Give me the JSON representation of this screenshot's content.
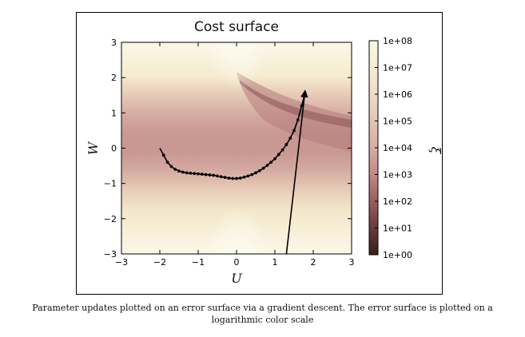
{
  "chart_data": {
    "type": "contour",
    "title": "Cost surface",
    "xlabel": "U",
    "ylabel": "W",
    "xlim": [
      -3,
      3
    ],
    "ylim": [
      -3,
      3
    ],
    "x_ticks": [
      -3,
      -2,
      -1,
      0,
      1,
      2,
      3
    ],
    "y_ticks": [
      -3,
      -2,
      -1,
      0,
      1,
      2,
      3
    ],
    "colorbar": {
      "label": "ξ",
      "scale": "log",
      "range": [
        1,
        100000000
      ],
      "tick_labels": [
        "1e+00",
        "1e+01",
        "1e+02",
        "1e+03",
        "1e+04",
        "1e+05",
        "1e+06",
        "1e+07",
        "1e+08"
      ],
      "colors": [
        "#3a1e1e",
        "#6a3a3a",
        "#9a5e5c",
        "#bf8a86",
        "#d6aca4",
        "#e4c4b6",
        "#efdcc6",
        "#f6ecd3",
        "#fafae4"
      ]
    },
    "gradient_path": {
      "x": [
        1.3,
        1.78,
        1.7,
        1.6,
        1.5,
        1.4,
        1.3,
        1.2,
        1.1,
        1.0,
        0.9,
        0.8,
        0.7,
        0.6,
        0.5,
        0.4,
        0.3,
        0.2,
        0.1,
        0.0,
        -0.1,
        -0.2,
        -0.3,
        -0.4,
        -0.5,
        -0.6,
        -0.7,
        -0.8,
        -0.9,
        -1.0,
        -1.1,
        -1.2,
        -1.3,
        -1.4,
        -1.5,
        -1.6,
        -1.7,
        -1.8,
        -1.9,
        -2.0
      ],
      "y": [
        -3.0,
        1.55,
        1.2,
        0.8,
        0.5,
        0.28,
        0.1,
        -0.05,
        -0.18,
        -0.3,
        -0.4,
        -0.49,
        -0.57,
        -0.64,
        -0.7,
        -0.75,
        -0.79,
        -0.82,
        -0.85,
        -0.86,
        -0.86,
        -0.85,
        -0.83,
        -0.81,
        -0.79,
        -0.77,
        -0.76,
        -0.75,
        -0.74,
        -0.73,
        -0.72,
        -0.71,
        -0.7,
        -0.68,
        -0.65,
        -0.6,
        -0.52,
        -0.4,
        -0.2,
        0.0
      ],
      "color": "#000000"
    },
    "surface_colors": {
      "valley": "#c69590",
      "mid": "#d8b0a8",
      "outer": "#f2e4c6",
      "edge": "#fbf7e8",
      "ridge": "#a76a6a"
    }
  },
  "caption": {
    "line1": "Parameter updates plotted on an error surface via a gradient descent. The error surface is plotted on a",
    "line2": "logarithmic color scale"
  }
}
